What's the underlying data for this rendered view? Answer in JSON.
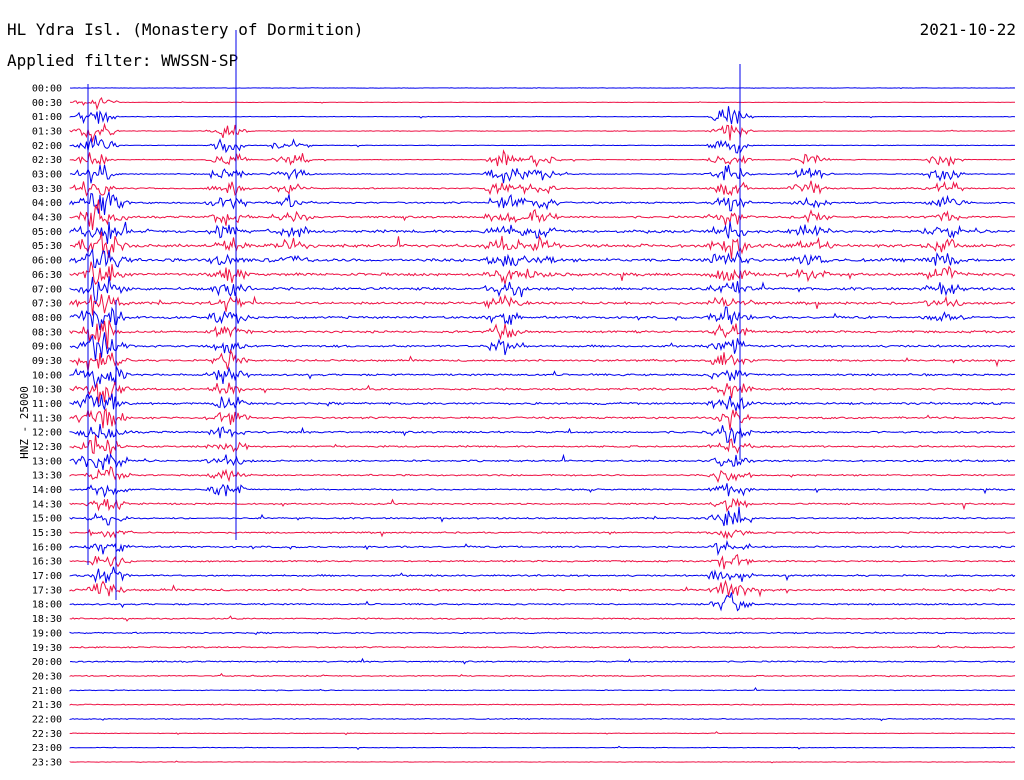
{
  "header": {
    "station": "HL Ydra Isl. (Monastery of Dormition)",
    "date": "2021-10-22",
    "filter": "Applied filter: WWSSN-SP",
    "channel": "HNZ - 25000"
  },
  "colors": {
    "even_row": "#0000ee",
    "odd_row": "#ee1144"
  },
  "chart_data": {
    "type": "line",
    "title": "HL Ydra Isl. (Monastery of Dormition)",
    "ylabel": "HNZ - 25000",
    "tick_labels": [
      "00:00",
      "00:30",
      "01:00",
      "01:30",
      "02:00",
      "02:30",
      "03:00",
      "03:30",
      "04:00",
      "04:30",
      "05:00",
      "05:30",
      "06:00",
      "06:30",
      "07:00",
      "07:30",
      "08:00",
      "08:30",
      "09:00",
      "09:30",
      "10:00",
      "10:30",
      "11:00",
      "11:30",
      "12:00",
      "12:30",
      "13:00",
      "13:30",
      "14:00",
      "14:30",
      "15:00",
      "15:30",
      "16:00",
      "16:30",
      "17:00",
      "17:30",
      "18:00",
      "18:30",
      "19:00",
      "19:30",
      "20:00",
      "20:30",
      "21:00",
      "21:30",
      "22:00",
      "22:30",
      "23:00",
      "23:30"
    ],
    "row_activity": [
      0.1,
      0.1,
      0.15,
      0.15,
      0.15,
      0.2,
      0.25,
      0.35,
      0.45,
      0.5,
      0.7,
      0.8,
      0.8,
      0.75,
      0.7,
      0.65,
      0.6,
      0.55,
      0.55,
      0.5,
      0.5,
      0.5,
      0.55,
      0.5,
      0.5,
      0.45,
      0.45,
      0.4,
      0.4,
      0.4,
      0.4,
      0.4,
      0.45,
      0.4,
      0.45,
      0.55,
      0.4,
      0.35,
      0.35,
      0.35,
      0.35,
      0.3,
      0.2,
      0.25,
      0.25,
      0.15,
      0.15,
      0.1
    ],
    "bursts": [
      {
        "minute": 95,
        "amp": 1.6,
        "rows": [
          1,
          26
        ]
      },
      {
        "minute": 108,
        "amp": 1.3,
        "rows": [
          8,
          35
        ]
      },
      {
        "minute": 228,
        "amp": 1.2,
        "rows": [
          3,
          28
        ]
      },
      {
        "minute": 290,
        "amp": 1.0,
        "rows": [
          4,
          12
        ]
      },
      {
        "minute": 505,
        "amp": 1.2,
        "rows": [
          5,
          18
        ]
      },
      {
        "minute": 538,
        "amp": 1.0,
        "rows": [
          5,
          13
        ]
      },
      {
        "minute": 730,
        "amp": 1.5,
        "rows": [
          2,
          36
        ]
      },
      {
        "minute": 810,
        "amp": 1.0,
        "rows": [
          5,
          13
        ]
      },
      {
        "minute": 945,
        "amp": 1.0,
        "rows": [
          5,
          16
        ]
      }
    ]
  }
}
